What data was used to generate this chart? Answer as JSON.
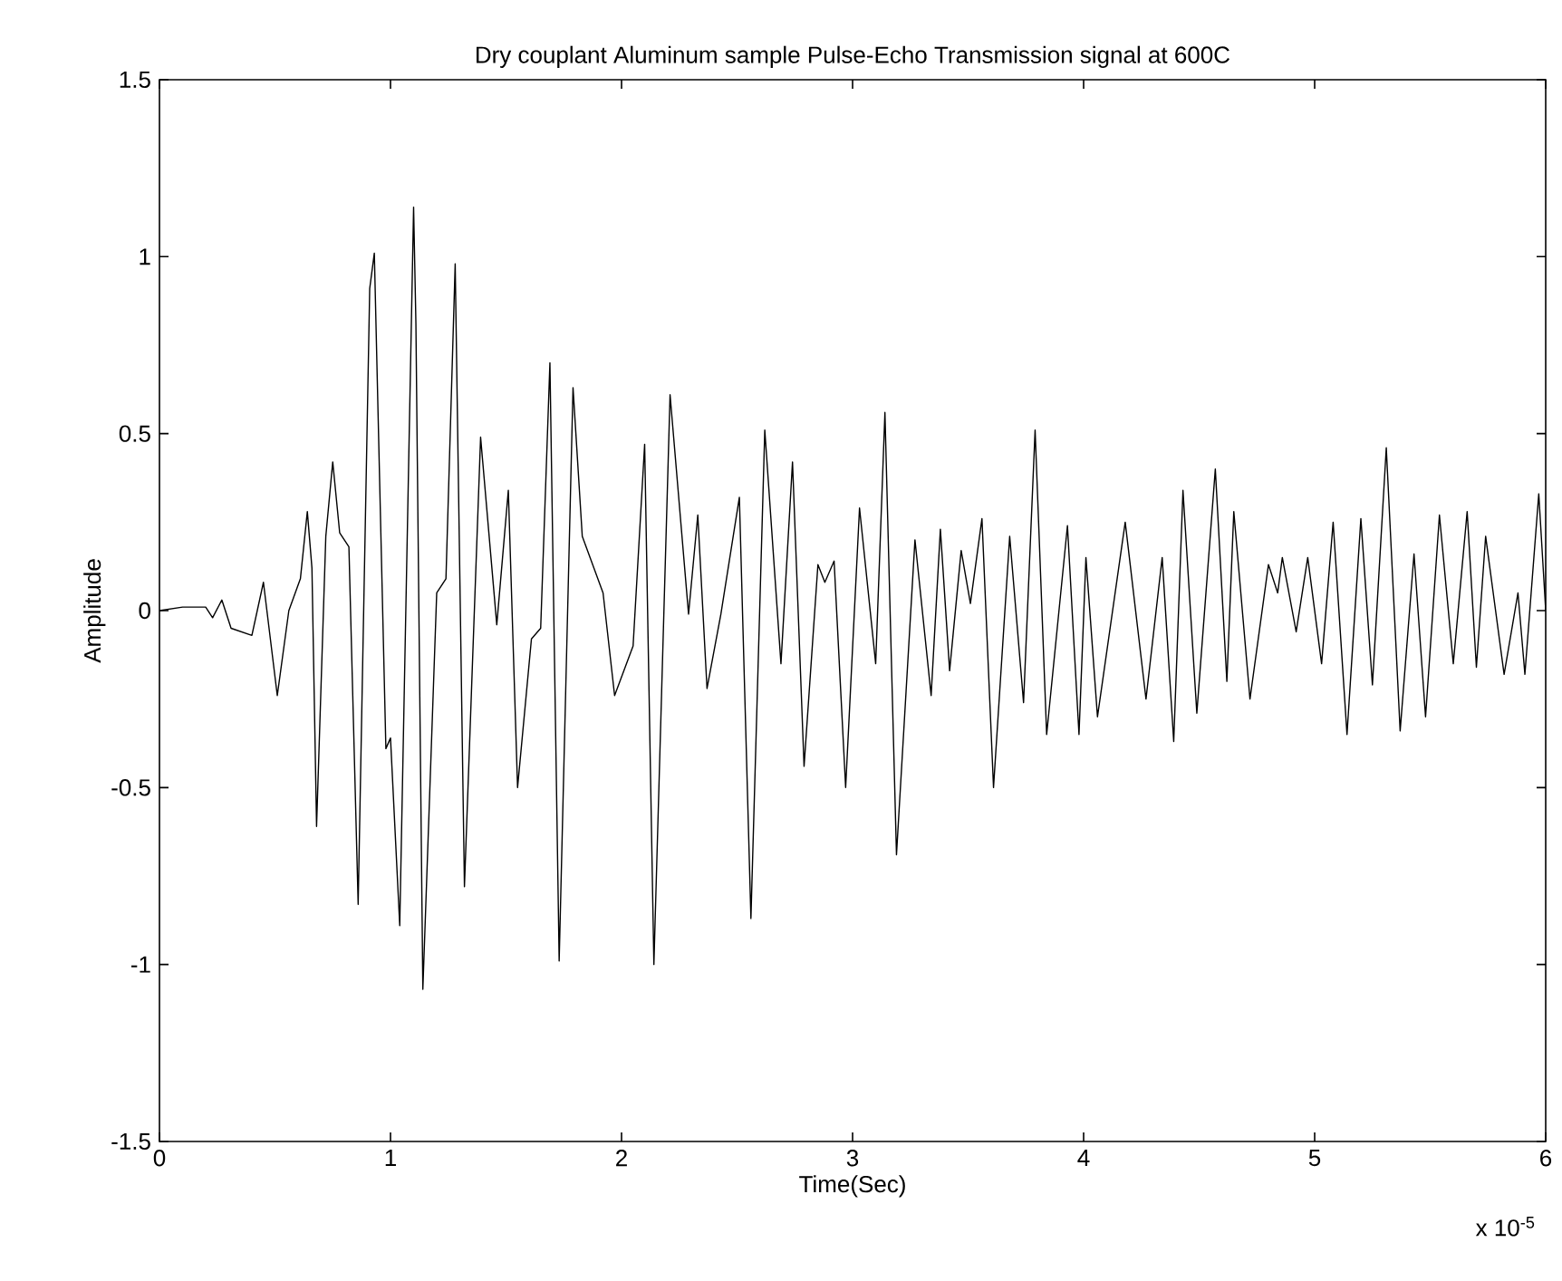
{
  "chart_data": {
    "type": "line",
    "title": "Dry couplant Aluminum sample Pulse-Echo Transmission signal at 600C",
    "xlabel": "Time(Sec)",
    "ylabel": "Amplitude",
    "annotations": [
      "x 10$^{-5}$"
    ],
    "x": [
      0,
      0.1,
      0.2,
      0.23,
      0.27,
      0.31,
      0.4,
      0.45,
      0.51,
      0.56,
      0.61,
      0.64,
      0.66,
      0.68,
      0.72,
      0.75,
      0.78,
      0.82,
      0.86,
      0.91,
      0.93,
      0.98,
      1.0,
      1.04,
      1.1,
      1.11,
      1.14,
      1.2,
      1.24,
      1.28,
      1.32,
      1.39,
      1.46,
      1.51,
      1.55,
      1.61,
      1.65,
      1.69,
      1.73,
      1.79,
      1.83,
      1.92,
      1.97,
      2.05,
      2.1,
      2.14,
      2.21,
      2.29,
      2.33,
      2.37,
      2.43,
      2.51,
      2.56,
      2.62,
      2.69,
      2.74,
      2.79,
      2.85,
      2.88,
      2.92,
      2.97,
      3.03,
      3.1,
      3.14,
      3.19,
      3.27,
      3.34,
      3.38,
      3.42,
      3.47,
      3.51,
      3.56,
      3.61,
      3.68,
      3.74,
      3.79,
      3.84,
      3.93,
      3.98,
      4.01,
      4.06,
      4.18,
      4.27,
      4.34,
      4.39,
      4.43,
      4.49,
      4.57,
      4.62,
      4.65,
      4.72,
      4.8,
      4.84,
      4.86,
      4.92,
      4.97,
      5.03,
      5.08,
      5.14,
      5.2,
      5.25,
      5.31,
      5.37,
      5.43,
      5.48,
      5.54,
      5.6,
      5.66,
      5.7,
      5.74,
      5.82,
      5.88,
      5.91,
      5.97,
      6.0
    ],
    "values": [
      0.0,
      0.01,
      0.01,
      -0.02,
      0.03,
      -0.05,
      -0.07,
      0.08,
      -0.24,
      0.0,
      0.09,
      0.28,
      0.12,
      -0.61,
      0.21,
      0.42,
      0.22,
      0.18,
      -0.83,
      0.91,
      1.01,
      -0.39,
      -0.36,
      -0.89,
      1.14,
      0.81,
      -1.07,
      0.05,
      0.09,
      0.98,
      -0.78,
      0.49,
      -0.04,
      0.34,
      -0.5,
      -0.08,
      -0.05,
      0.7,
      -0.99,
      0.63,
      0.21,
      0.05,
      -0.24,
      -0.1,
      0.47,
      -1.0,
      0.61,
      -0.01,
      0.27,
      -0.22,
      -0.01,
      0.32,
      -0.87,
      0.51,
      -0.15,
      0.42,
      -0.44,
      0.13,
      0.08,
      0.14,
      -0.5,
      0.29,
      -0.15,
      0.56,
      -0.69,
      0.2,
      -0.24,
      0.23,
      -0.17,
      0.17,
      0.02,
      0.26,
      -0.5,
      0.21,
      -0.26,
      0.51,
      -0.35,
      0.24,
      -0.35,
      0.15,
      -0.3,
      0.25,
      -0.25,
      0.15,
      -0.37,
      0.34,
      -0.29,
      0.4,
      -0.2,
      0.28,
      -0.25,
      0.13,
      0.05,
      0.15,
      -0.06,
      0.15,
      -0.15,
      0.25,
      -0.35,
      0.26,
      -0.21,
      0.46,
      -0.34,
      0.16,
      -0.3,
      0.27,
      -0.15,
      0.28,
      -0.16,
      0.21,
      -0.18,
      0.05,
      -0.18,
      0.33,
      0.0
    ],
    "color": "#000000",
    "xlim": [
      0,
      6
    ],
    "ylim": [
      -1.5,
      1.5
    ],
    "xticks": [
      0,
      1,
      2,
      3,
      4,
      5,
      6
    ],
    "yticks": [
      -1.5,
      -1,
      -0.5,
      0,
      0.5,
      1,
      1.5
    ]
  }
}
